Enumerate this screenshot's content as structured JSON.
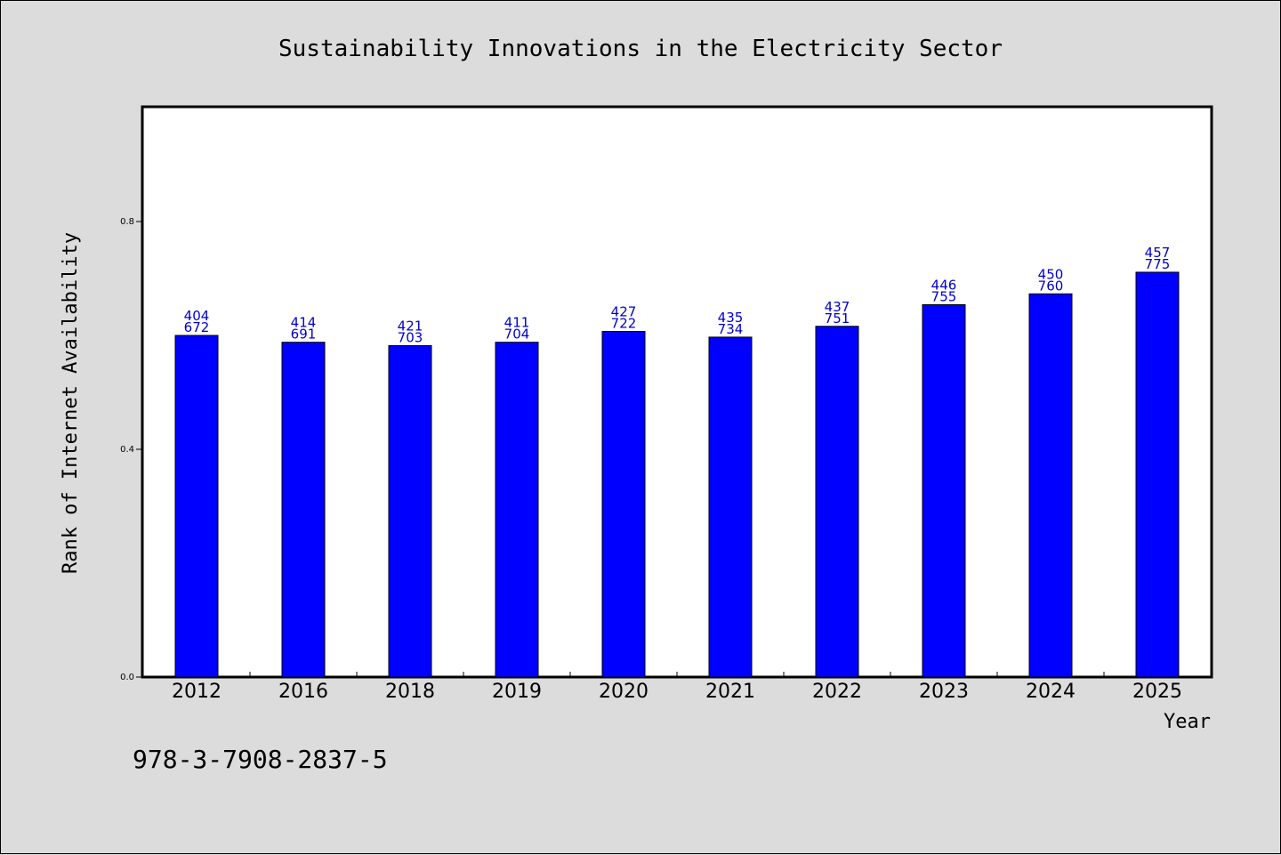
{
  "chart_data": {
    "type": "bar",
    "title": "Sustainability Innovations in the Electricity Sector",
    "xlabel": "Year",
    "ylabel": "Rank of Internet Availability",
    "categories": [
      "2012",
      "2016",
      "2018",
      "2019",
      "2020",
      "2021",
      "2022",
      "2023",
      "2024",
      "2025"
    ],
    "values": [
      0.6,
      0.588,
      0.582,
      0.588,
      0.607,
      0.597,
      0.616,
      0.654,
      0.673,
      0.711
    ],
    "data_labels": [
      [
        "404",
        "672"
      ],
      [
        "414",
        "691"
      ],
      [
        "421",
        "703"
      ],
      [
        "411",
        "704"
      ],
      [
        "427",
        "722"
      ],
      [
        "435",
        "734"
      ],
      [
        "437",
        "751"
      ],
      [
        "446",
        "755"
      ],
      [
        "450",
        "760"
      ],
      [
        "457",
        "775"
      ]
    ],
    "yticks": [
      "0.0",
      "0.4",
      "0.8"
    ],
    "ylim": [
      0,
      1.0
    ],
    "grid": false,
    "bar_color": "#0000ff",
    "label_color": "#0000cc"
  },
  "footer": {
    "isbn": "978-3-7908-2837-5"
  }
}
